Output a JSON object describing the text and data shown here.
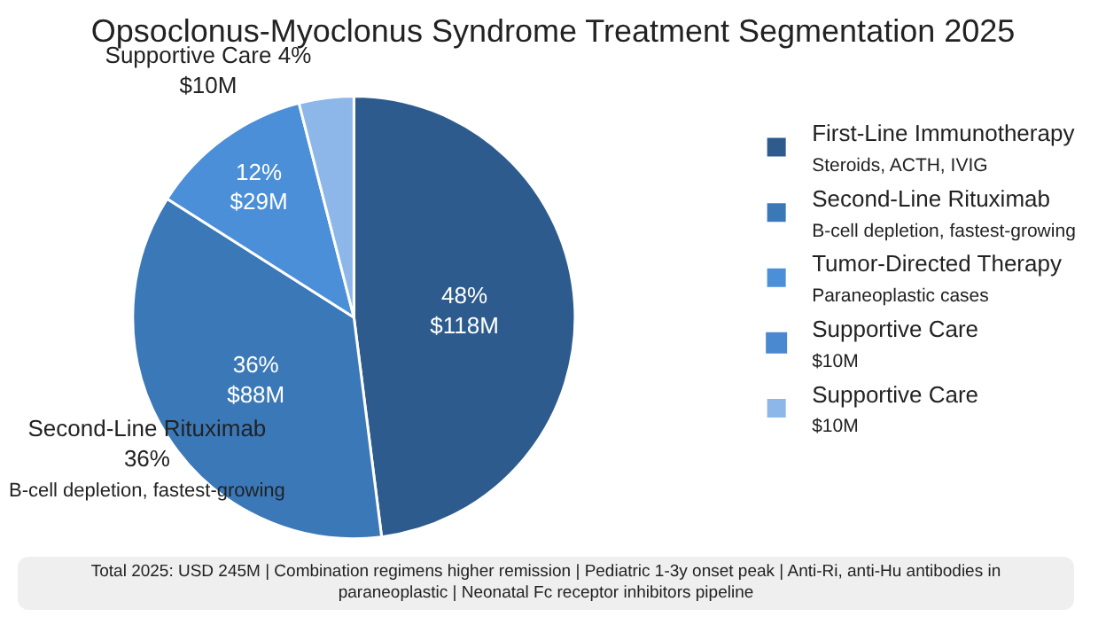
{
  "chart_data": {
    "type": "pie",
    "title": "Opsoclonus-Myoclonus Syndrome Treatment Segmentation 2025",
    "categories": [
      "First-Line Immunotherapy\nSteroids, ACTH, IVIG",
      "Second-Line Rituximab\nB-cell depletion, fastest-growing",
      "Tumor-Directed Therapy\nParaneoplastic cases",
      "Supportive Care\n$10M",
      "Supportive Care\n$10M"
    ],
    "values": [
      48,
      36,
      12,
      0,
      4
    ],
    "colors": [
      "#2d5b8e",
      "#3b78b8",
      "#4a8fd8",
      "#4a89d0",
      "#8db7e9"
    ],
    "value_labels": [
      "48%\n$118M",
      "36%\n$88M",
      "12%\n$29M",
      null,
      "Supportive Care 4%\n$10M"
    ],
    "annotations": [
      "Second-Line Rituximab\n36%\nB-cell depletion, fastest-growing",
      "Total 2025: USD 245M | Combination regimens higher remission | Pediatric 1-3y onset peak | Anti-Ri, anti-Hu antibodies in paraneoplastic | Neonatal Fc receptor inhibitors pipeline"
    ],
    "legend": "right"
  }
}
